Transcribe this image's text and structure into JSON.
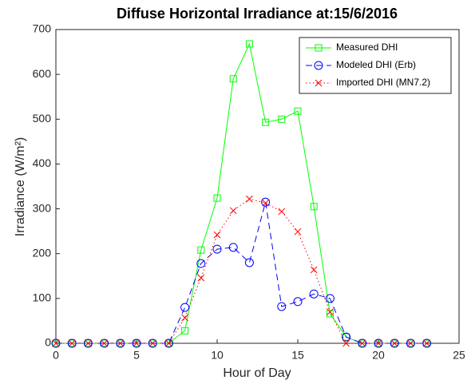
{
  "chart_data": {
    "type": "line",
    "title": "Diffuse Horizontal Irradiance at:15/6/2016",
    "x_label": "Hour of Day",
    "y_label": "Irradiance (W/m²)",
    "x": [
      0,
      1,
      2,
      3,
      4,
      5,
      6,
      7,
      8,
      9,
      10,
      11,
      12,
      13,
      14,
      15,
      16,
      17,
      18,
      19,
      20,
      21,
      22,
      23
    ],
    "series": [
      {
        "name": "Measured DHI",
        "color": "#00ff00",
        "line_style": "solid",
        "marker": "square",
        "values": [
          0,
          0,
          0,
          0,
          0,
          0,
          0,
          0,
          28,
          208,
          324,
          590,
          668,
          493,
          500,
          518,
          305,
          66,
          14,
          0,
          0,
          0,
          0,
          0
        ]
      },
      {
        "name": "Modeled DHI (Erb)",
        "color": "#0000ff",
        "line_style": "dashed",
        "marker": "circle",
        "values": [
          0,
          0,
          0,
          0,
          0,
          0,
          0,
          0,
          80,
          178,
          210,
          214,
          180,
          315,
          82,
          93,
          110,
          100,
          14,
          0,
          0,
          0,
          0,
          0
        ]
      },
      {
        "name": "Imported DHI (MN7.2)",
        "color": "#ff0000",
        "line_style": "dotted",
        "marker": "x",
        "values": [
          0,
          0,
          0,
          0,
          0,
          0,
          0,
          0,
          57,
          146,
          242,
          296,
          322,
          313,
          294,
          249,
          164,
          70,
          0,
          0,
          0,
          0,
          0,
          0
        ]
      }
    ],
    "xlim": [
      0,
      25
    ],
    "xticks": [
      0,
      5,
      10,
      15,
      20,
      25
    ],
    "ylim": [
      0,
      700
    ],
    "yticks": [
      0,
      100,
      200,
      300,
      400,
      500,
      600,
      700
    ],
    "grid": false,
    "legend": "northeast"
  }
}
